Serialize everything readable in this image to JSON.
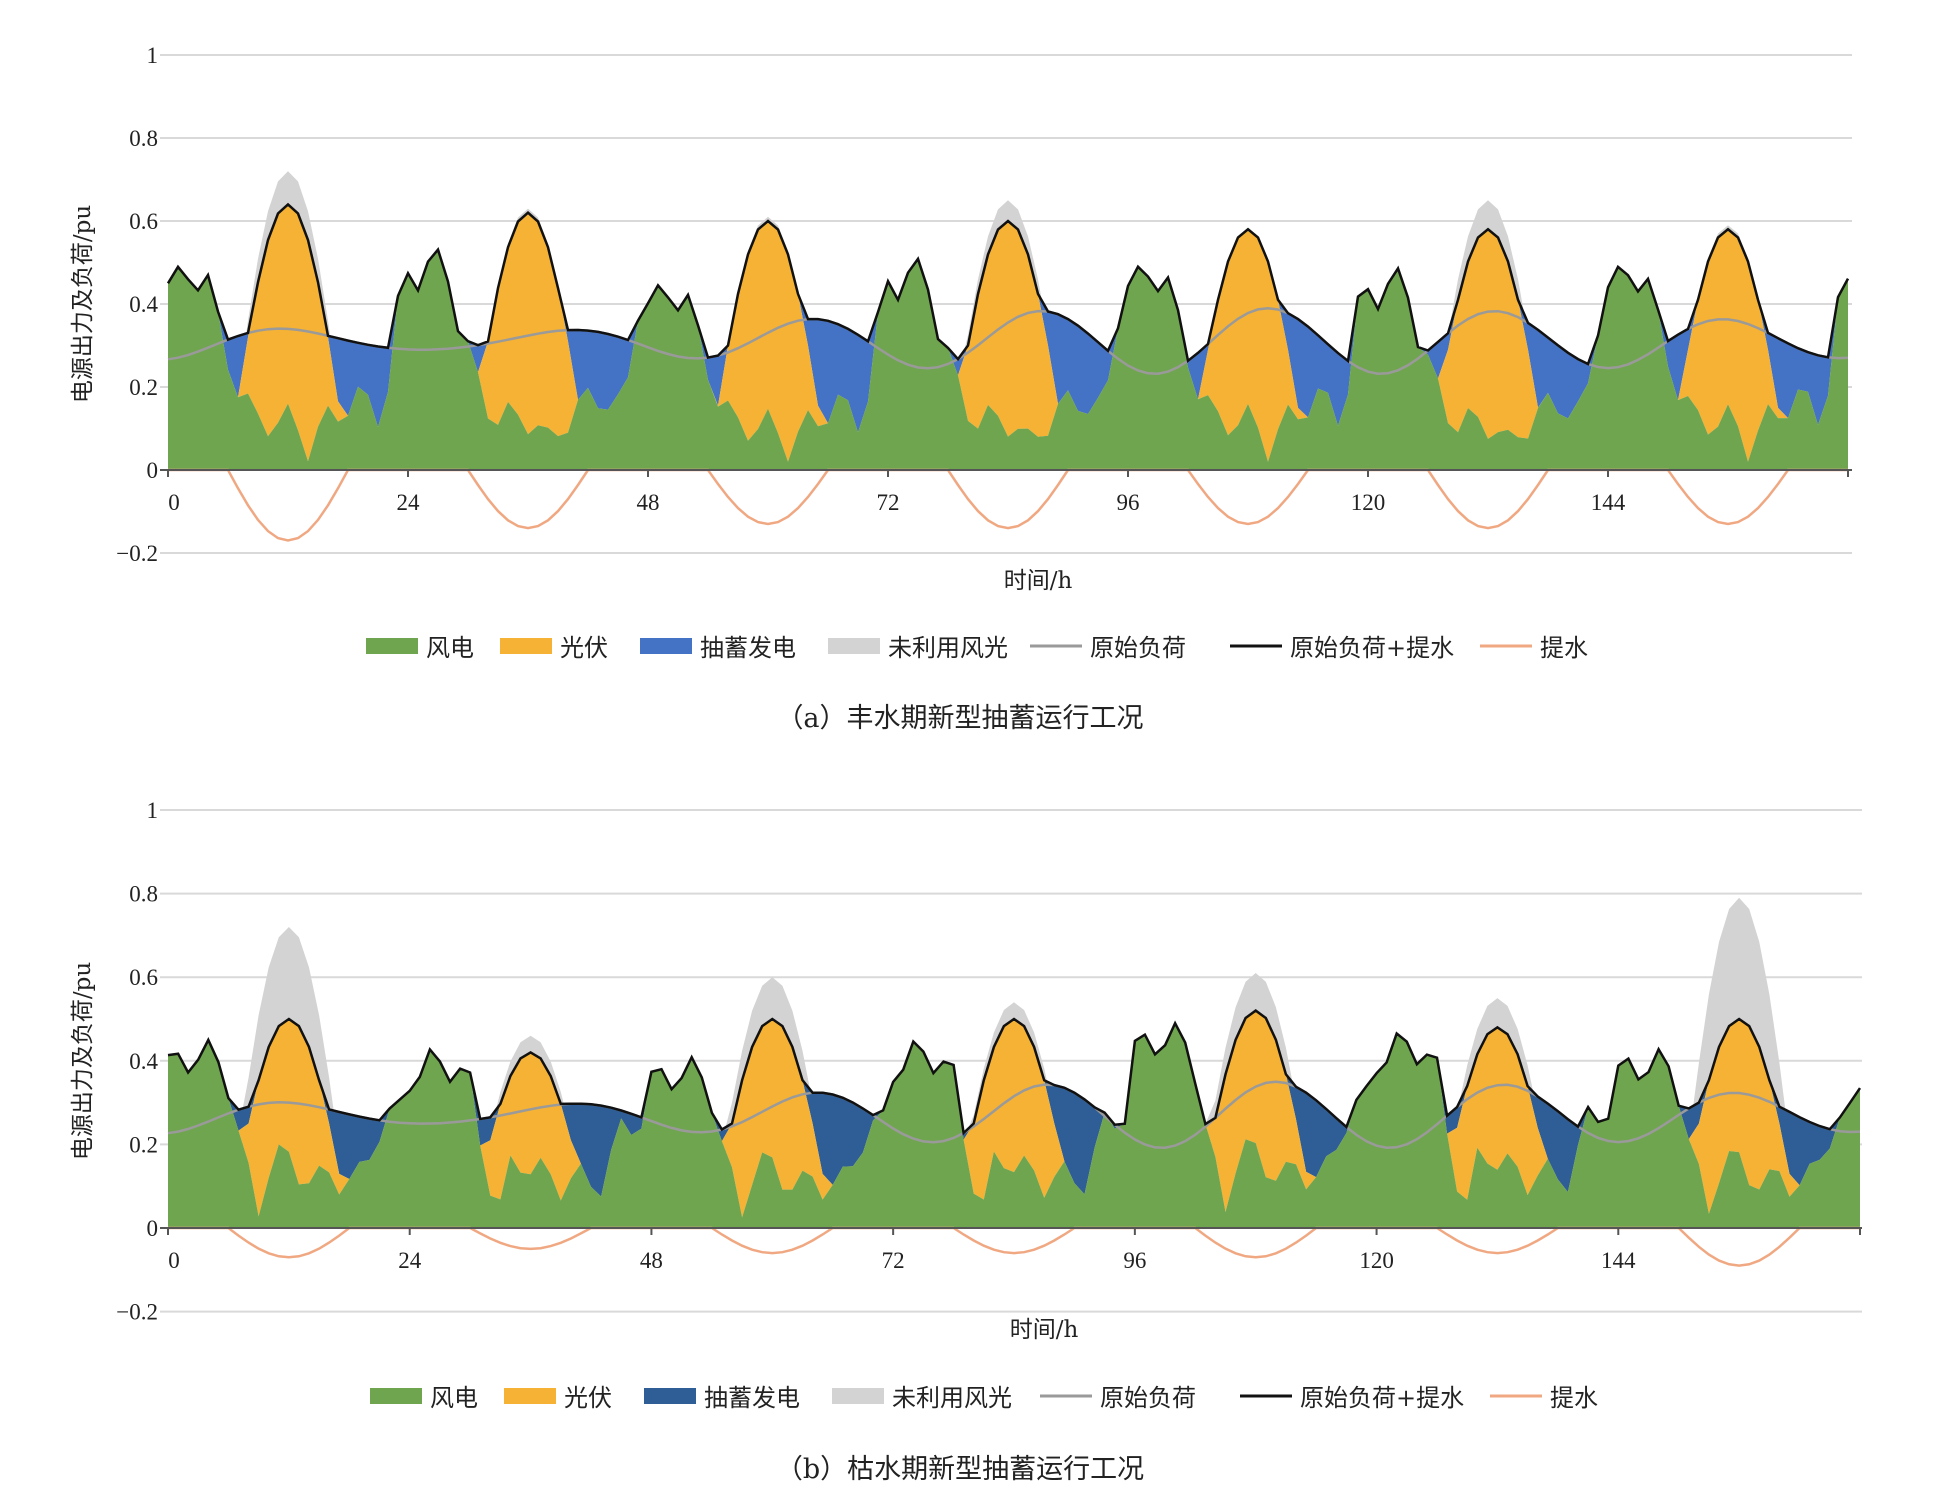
{
  "colors": {
    "wind": "#70a54f",
    "pv": "#f5b234",
    "pump_a": "#4472c4",
    "pump_b": "#2f5d95",
    "curtail": "#d3d3d3",
    "load": "#9a9a9a",
    "loadpump": "#111111",
    "pump": "#f0a882",
    "grid": "#d9d9d9"
  },
  "legend": [
    "风电",
    "光伏",
    "抽蓄发电",
    "未利用风光",
    "原始负荷",
    "原始负荷+提水",
    "提水"
  ],
  "chart_data": [
    {
      "type": "area",
      "caption": "（a）丰水期新型抽蓄运行工况",
      "ylabel": "电源出力及负荷/pu",
      "xlabel": "时间/h",
      "ylim": [
        -0.2,
        1
      ],
      "yticks": [
        "1",
        "0.8",
        "0.6",
        "0.4",
        "0.2",
        "0",
        "−0.2"
      ],
      "xticks": [
        "0",
        "24",
        "48",
        "72",
        "96",
        "120",
        "144"
      ],
      "xlim": [
        0,
        168
      ],
      "grid": true,
      "legend_position": "bottom",
      "wind_day": [
        0.45,
        0.45,
        0.47,
        0.47,
        0.45,
        0.35,
        0.27,
        0.2,
        0.15,
        0.12,
        0.12,
        0.12,
        0.12,
        0.1,
        0.06,
        0.09,
        0.12,
        0.14,
        0.16,
        0.17,
        0.16,
        0.14,
        0.2,
        0.38
      ],
      "wind_amp": [
        1.0,
        1.05,
        0.9,
        1.0,
        1.0,
        0.95,
        1.0
      ],
      "solar_peak": [
        0.64,
        0.62,
        0.6,
        0.6,
        0.58,
        0.58,
        0.58
      ],
      "curtail_peak": [
        0.72,
        0.63,
        0.61,
        0.65,
        0.58,
        0.65,
        0.59
      ],
      "pump_peak": [
        0.17,
        0.14,
        0.13,
        0.14,
        0.13,
        0.14,
        0.13
      ],
      "load_base": 0.31,
      "series": [
        {
          "name": "风电",
          "key": "wind"
        },
        {
          "name": "光伏",
          "key": "pv"
        },
        {
          "name": "抽蓄发电",
          "key": "pump_a"
        },
        {
          "name": "未利用风光",
          "key": "curtail"
        },
        {
          "name": "原始负荷",
          "key": "load"
        },
        {
          "name": "原始负荷+提水",
          "key": "loadpump"
        },
        {
          "name": "提水",
          "key": "pump"
        }
      ]
    },
    {
      "type": "area",
      "caption": "（b）枯水期新型抽蓄运行工况",
      "ylabel": "电源出力及负荷/pu",
      "xlabel": "时间/h",
      "ylim": [
        -0.2,
        1
      ],
      "yticks": [
        "1",
        "0.8",
        "0.6",
        "0.4",
        "0.2",
        "0",
        "−0.2"
      ],
      "xticks": [
        "0",
        "24",
        "48",
        "72",
        "96",
        "120",
        "144"
      ],
      "xlim": [
        0,
        168
      ],
      "grid": true,
      "legend_position": "bottom",
      "wind_day": [
        0.38,
        0.4,
        0.41,
        0.41,
        0.41,
        0.4,
        0.35,
        0.22,
        0.12,
        0.05,
        0.15,
        0.17,
        0.16,
        0.14,
        0.12,
        0.11,
        0.13,
        0.12,
        0.11,
        0.12,
        0.18,
        0.24,
        0.26,
        0.28
      ],
      "wind_amp": [
        1.0,
        0.95,
        0.9,
        1.0,
        1.1,
        1.05,
        0.95
      ],
      "solar_peak": [
        0.5,
        0.42,
        0.5,
        0.5,
        0.52,
        0.48,
        0.5
      ],
      "curtail_peak": [
        0.72,
        0.46,
        0.6,
        0.54,
        0.61,
        0.55,
        0.79
      ],
      "pump_peak": [
        0.07,
        0.05,
        0.06,
        0.06,
        0.07,
        0.06,
        0.09
      ],
      "load_base": 0.27,
      "series": [
        {
          "name": "风电",
          "key": "wind"
        },
        {
          "name": "光伏",
          "key": "pv"
        },
        {
          "name": "抽蓄发电",
          "key": "pump_b"
        },
        {
          "name": "未利用风光",
          "key": "curtail"
        },
        {
          "name": "原始负荷",
          "key": "load"
        },
        {
          "name": "原始负荷+提水",
          "key": "loadpump"
        },
        {
          "name": "提水",
          "key": "pump"
        }
      ]
    }
  ]
}
